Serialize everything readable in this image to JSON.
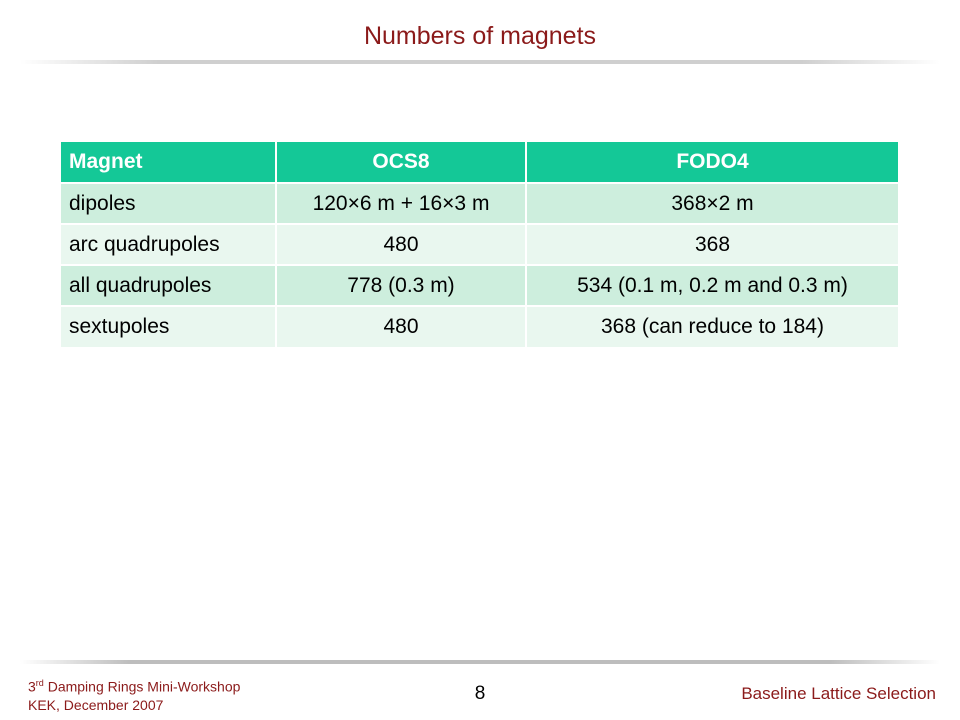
{
  "slide": {
    "title": "Numbers of magnets",
    "page_number": "8"
  },
  "table": {
    "headers": [
      "Magnet",
      "OCS8",
      "FODO4"
    ],
    "rows": [
      [
        "dipoles",
        "120×6 m + 16×3 m",
        "368×2 m"
      ],
      [
        "arc quadrupoles",
        "480",
        "368"
      ],
      [
        "all quadrupoles",
        "778 (0.3 m)",
        "534 (0.1 m, 0.2 m and 0.3 m)"
      ],
      [
        "sextupoles",
        "480",
        "368 (can reduce to 184)"
      ]
    ],
    "colors": {
      "header_bg": "#14c897",
      "row_odd": "#cdeedd",
      "row_even": "#e9f7ef"
    }
  },
  "footer": {
    "workshop_ordinal": "3",
    "workshop_suffix": "rd",
    "workshop_name": "Damping Rings Mini-Workshop",
    "venue": "KEK, December 2007",
    "section": "Baseline Lattice Selection"
  },
  "colors": {
    "title": "#8b1a1a"
  }
}
